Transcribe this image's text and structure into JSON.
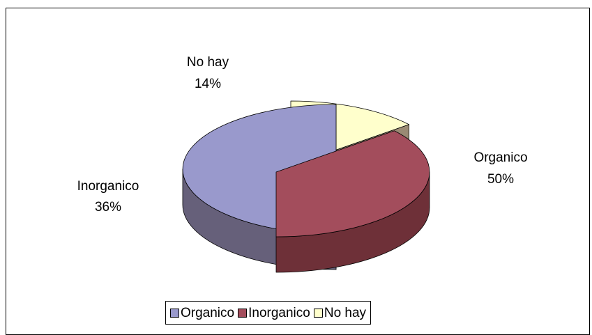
{
  "chart_data": {
    "type": "pie",
    "three_d": true,
    "exploded": true,
    "title": "",
    "slices": [
      {
        "name": "Organico",
        "value": 50,
        "label": "50%",
        "color": "#9999cc",
        "side_color": "#66607a"
      },
      {
        "name": "Inorganico",
        "value": 36,
        "label": "36%",
        "color": "#a34d5c",
        "side_color": "#6e3038"
      },
      {
        "name": "No hay",
        "value": 14,
        "label": "14%",
        "color": "#ffffcc",
        "side_color": "#9a8a74"
      }
    ],
    "legend": {
      "placement": "bottom",
      "items": [
        "Organico",
        "Inorganico",
        "No hay"
      ]
    }
  }
}
